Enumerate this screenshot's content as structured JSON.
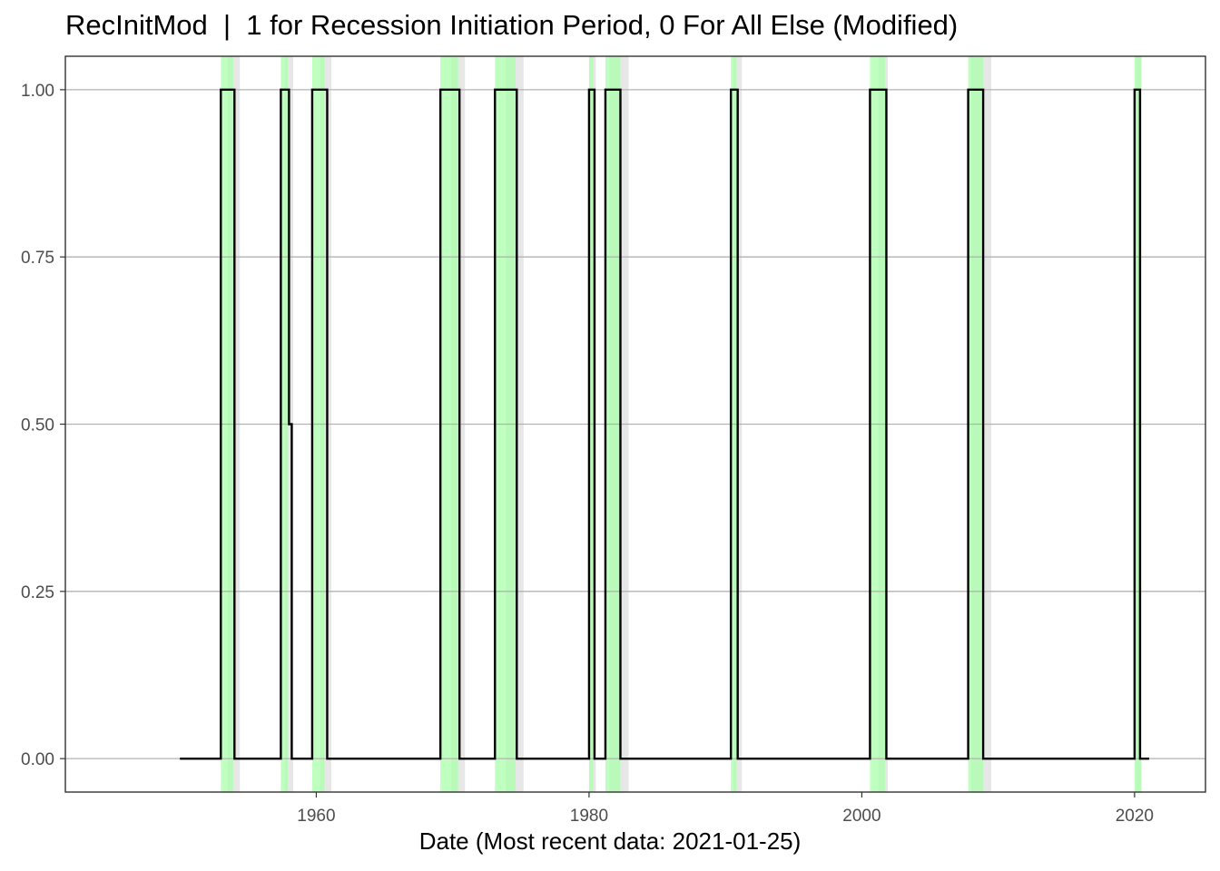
{
  "chart_data": {
    "type": "line",
    "title": "RecInitMod  |  1 for Recession Initiation Period, 0 For All Else (Modified)",
    "xlabel": "Date (Most recent data: 2021-01-25)",
    "ylabel": "",
    "xlim": [
      1941.6,
      2025.2
    ],
    "ylim": [
      -0.05,
      1.05
    ],
    "x_ticks": [
      1960,
      1980,
      2000,
      2020
    ],
    "x_tick_labels": [
      "1960",
      "1980",
      "2000",
      "2020"
    ],
    "y_ticks": [
      0.0,
      0.25,
      0.5,
      0.75,
      1.0
    ],
    "y_tick_labels": [
      "0.00",
      "0.25",
      "0.50",
      "0.75",
      "1.00"
    ],
    "grid": true,
    "series": [
      {
        "color": "#000000",
        "line_style": "step",
        "points": [
          [
            1950.0,
            0
          ],
          [
            1953.0,
            0
          ],
          [
            1953.0,
            1
          ],
          [
            1954.0,
            1
          ],
          [
            1954.0,
            0
          ],
          [
            1957.4,
            0
          ],
          [
            1957.4,
            1
          ],
          [
            1958.0,
            1
          ],
          [
            1958.0,
            0.5
          ],
          [
            1958.2,
            0.5
          ],
          [
            1958.2,
            0
          ],
          [
            1959.7,
            0
          ],
          [
            1959.7,
            1
          ],
          [
            1960.8,
            1
          ],
          [
            1960.8,
            0
          ],
          [
            1969.1,
            0
          ],
          [
            1969.1,
            1
          ],
          [
            1970.5,
            1
          ],
          [
            1970.5,
            0
          ],
          [
            1973.1,
            0
          ],
          [
            1973.1,
            1
          ],
          [
            1974.7,
            1
          ],
          [
            1974.7,
            0
          ],
          [
            1980.0,
            0
          ],
          [
            1980.0,
            1
          ],
          [
            1980.4,
            1
          ],
          [
            1980.4,
            0
          ],
          [
            1981.2,
            0
          ],
          [
            1981.2,
            1
          ],
          [
            1982.3,
            1
          ],
          [
            1982.3,
            0
          ],
          [
            1990.4,
            0
          ],
          [
            1990.4,
            1
          ],
          [
            1990.9,
            1
          ],
          [
            1990.9,
            0
          ],
          [
            2000.6,
            0
          ],
          [
            2000.6,
            1
          ],
          [
            2001.8,
            1
          ],
          [
            2001.8,
            0
          ],
          [
            2007.8,
            0
          ],
          [
            2007.8,
            1
          ],
          [
            2008.9,
            1
          ],
          [
            2008.9,
            0
          ],
          [
            2020.0,
            0
          ],
          [
            2020.0,
            1
          ],
          [
            2020.4,
            1
          ],
          [
            2020.4,
            0
          ],
          [
            2021.07,
            0
          ]
        ]
      }
    ],
    "shaded_bands": {
      "green_color": "#aaffaa",
      "grey_color": "#d3d3d3",
      "green": [
        [
          1953.0,
          1953.9
        ],
        [
          1957.4,
          1957.9
        ],
        [
          1959.7,
          1960.6
        ],
        [
          1969.1,
          1970.4
        ],
        [
          1973.1,
          1974.6
        ],
        [
          1980.0,
          1980.3
        ],
        [
          1981.2,
          1982.3
        ],
        [
          1990.4,
          1990.8
        ],
        [
          2000.6,
          2001.7
        ],
        [
          2007.8,
          2008.9
        ],
        [
          2020.0,
          2020.5
        ]
      ],
      "grey": [
        [
          1953.5,
          1954.4
        ],
        [
          1957.7,
          1958.3
        ],
        [
          1960.3,
          1961.1
        ],
        [
          1969.9,
          1970.9
        ],
        [
          1973.9,
          1975.2
        ],
        [
          1980.0,
          1980.5
        ],
        [
          1981.5,
          1982.9
        ],
        [
          1990.6,
          1991.2
        ],
        [
          2001.2,
          2001.9
        ],
        [
          2008.0,
          2009.5
        ],
        [
          2020.1,
          2020.5
        ]
      ]
    }
  }
}
